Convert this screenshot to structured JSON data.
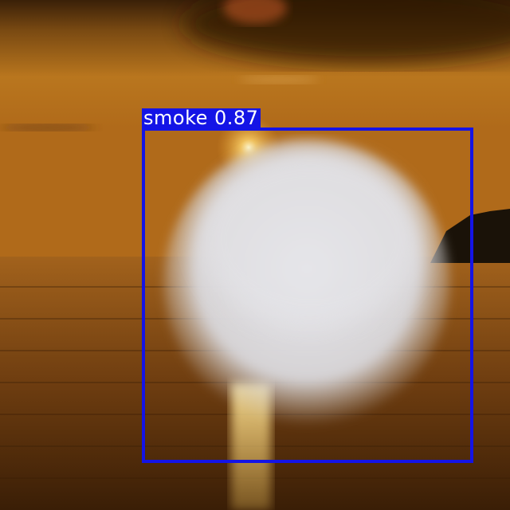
{
  "scene": {
    "description_icon": "sunset-over-sea-with-smoke-photo"
  },
  "detection": {
    "label": "smoke 0.87",
    "class": "smoke",
    "confidence": 0.87,
    "box_color": "#1414e6",
    "label_text_color": "#ffffff"
  }
}
